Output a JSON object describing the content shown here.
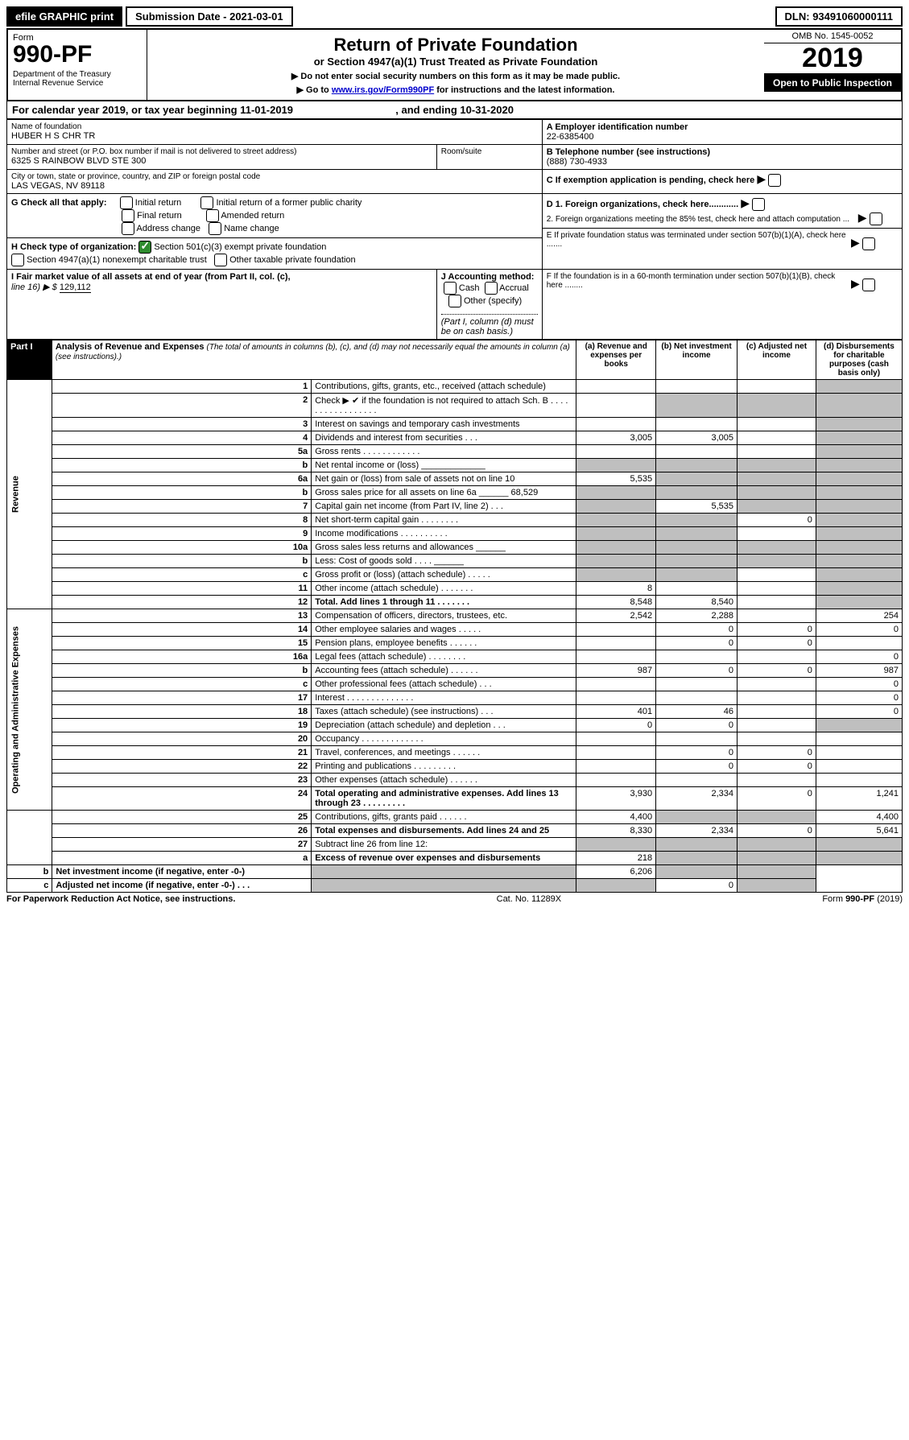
{
  "topbar": {
    "efile": "efile GRAPHIC print",
    "submission": "Submission Date - 2021-03-01",
    "dln": "DLN: 93491060000111"
  },
  "header": {
    "form_label": "Form",
    "form_num": "990-PF",
    "dept": "Department of the Treasury",
    "irs": "Internal Revenue Service",
    "title": "Return of Private Foundation",
    "subtitle": "or Section 4947(a)(1) Trust Treated as Private Foundation",
    "instr1": "▶ Do not enter social security numbers on this form as it may be made public.",
    "instr2_pre": "▶ Go to ",
    "instr2_link": "www.irs.gov/Form990PF",
    "instr2_post": " for instructions and the latest information.",
    "omb": "OMB No. 1545-0052",
    "year": "2019",
    "open": "Open to Public Inspection"
  },
  "calyear": {
    "text_a": "For calendar year 2019, or tax year beginning 11-01-2019",
    "text_b": ", and ending 10-31-2020"
  },
  "id": {
    "name_label": "Name of foundation",
    "name": "HUBER H S CHR TR",
    "addr_label": "Number and street (or P.O. box number if mail is not delivered to street address)",
    "addr": "6325 S RAINBOW BLVD STE 300",
    "room_label": "Room/suite",
    "city_label": "City or town, state or province, country, and ZIP or foreign postal code",
    "city": "LAS VEGAS, NV  89118",
    "ein_label": "A Employer identification number",
    "ein": "22-6385400",
    "phone_label": "B Telephone number (see instructions)",
    "phone": "(888) 730-4933",
    "c_label": "C If exemption application is pending, check here",
    "d1": "D 1. Foreign organizations, check here............",
    "d2": "2. Foreign organizations meeting the 85% test, check here and attach computation ...",
    "e": "E  If private foundation status was terminated under section 507(b)(1)(A), check here .......",
    "f": "F  If the foundation is in a 60-month termination under section 507(b)(1)(B), check here ........"
  },
  "g": {
    "label": "G Check all that apply:",
    "opts": [
      "Initial return",
      "Final return",
      "Address change",
      "Initial return of a former public charity",
      "Amended return",
      "Name change"
    ]
  },
  "h": {
    "label": "H Check type of organization:",
    "opt1": "Section 501(c)(3) exempt private foundation",
    "opt2": "Section 4947(a)(1) nonexempt charitable trust",
    "opt3": "Other taxable private foundation"
  },
  "i": {
    "label": "I Fair market value of all assets at end of year (from Part II, col. (c),",
    "line": "line 16) ▶ $",
    "val": "129,112"
  },
  "j": {
    "label": "J Accounting method:",
    "cash": "Cash",
    "accrual": "Accrual",
    "other": "Other (specify)",
    "note": "(Part I, column (d) must be on cash basis.)"
  },
  "part1": {
    "hdr": "Part I",
    "title": "Analysis of Revenue and Expenses",
    "note": "(The total of amounts in columns (b), (c), and (d) may not necessarily equal the amounts in column (a) (see instructions).)",
    "col_a": "(a)  Revenue and expenses per books",
    "col_b": "(b)  Net investment income",
    "col_c": "(c)  Adjusted net income",
    "col_d": "(d)  Disbursements for charitable purposes (cash basis only)",
    "rev_label": "Revenue",
    "exp_label": "Operating and Administrative Expenses"
  },
  "rows": [
    {
      "n": "1",
      "d": "Contributions, gifts, grants, etc., received (attach schedule)",
      "a": "",
      "b": "",
      "c": "",
      "dd": "",
      "gc": "",
      "gd": "1"
    },
    {
      "n": "2",
      "d": "Check ▶ ✔ if the foundation is not required to attach Sch. B  .  .  .  .  .  .  .  .  .  .  .  .  .  .  .  .  .",
      "a": "",
      "b": "",
      "c": "",
      "dd": "",
      "gb": "1",
      "gc": "1",
      "gd": "1"
    },
    {
      "n": "3",
      "d": "Interest on savings and temporary cash investments",
      "a": "",
      "b": "",
      "c": "",
      "dd": "",
      "gd": "1"
    },
    {
      "n": "4",
      "d": "Dividends and interest from securities    .   .   .",
      "a": "3,005",
      "b": "3,005",
      "c": "",
      "dd": "",
      "gd": "1"
    },
    {
      "n": "5a",
      "d": "Gross rents    .  .  .  .  .  .  .  .  .  .  .  .",
      "a": "",
      "b": "",
      "c": "",
      "dd": "",
      "gd": "1"
    },
    {
      "n": "b",
      "d": "Net rental income or (loss)  _____________",
      "a": "",
      "b": "",
      "c": "",
      "dd": "",
      "ga": "1",
      "gb": "1",
      "gc": "1",
      "gd": "1"
    },
    {
      "n": "6a",
      "d": "Net gain or (loss) from sale of assets not on line 10",
      "a": "5,535",
      "b": "",
      "c": "",
      "dd": "",
      "gb": "1",
      "gc": "1",
      "gd": "1"
    },
    {
      "n": "b",
      "d": "Gross sales price for all assets on line 6a ______ 68,529",
      "a": "",
      "b": "",
      "c": "",
      "dd": "",
      "ga": "1",
      "gb": "1",
      "gc": "1",
      "gd": "1"
    },
    {
      "n": "7",
      "d": "Capital gain net income (from Part IV, line 2)   .   .   .",
      "a": "",
      "b": "5,535",
      "c": "",
      "dd": "",
      "ga": "1",
      "gc": "1",
      "gd": "1"
    },
    {
      "n": "8",
      "d": "Net short-term capital gain   .  .  .  .  .  .  .  .",
      "a": "",
      "b": "",
      "c": "0",
      "dd": "",
      "ga": "1",
      "gb": "1",
      "gd": "1"
    },
    {
      "n": "9",
      "d": "Income modifications  .  .  .  .  .  .  .  .  .  .",
      "a": "",
      "b": "",
      "c": "",
      "dd": "",
      "ga": "1",
      "gb": "1",
      "gd": "1"
    },
    {
      "n": "10a",
      "d": "Gross sales less returns and allowances  ______",
      "a": "",
      "b": "",
      "c": "",
      "dd": "",
      "ga": "1",
      "gb": "1",
      "gc": "1",
      "gd": "1"
    },
    {
      "n": "b",
      "d": "Less: Cost of goods sold    .   .   .   .  ______",
      "a": "",
      "b": "",
      "c": "",
      "dd": "",
      "ga": "1",
      "gb": "1",
      "gc": "1",
      "gd": "1"
    },
    {
      "n": "c",
      "d": "Gross profit or (loss) (attach schedule)   .  .  .  .  .",
      "a": "",
      "b": "",
      "c": "",
      "dd": "",
      "ga": "1",
      "gb": "1",
      "gd": "1"
    },
    {
      "n": "11",
      "d": "Other income (attach schedule)   .  .  .  .  .  .  .",
      "a": "8",
      "b": "",
      "c": "",
      "dd": "",
      "gd": "1"
    },
    {
      "n": "12",
      "d": "Total. Add lines 1 through 11   .  .  .  .  .  .  .",
      "a": "8,548",
      "b": "8,540",
      "c": "",
      "dd": "",
      "gd": "1",
      "bold": "1"
    },
    {
      "n": "13",
      "d": "Compensation of officers, directors, trustees, etc.",
      "a": "2,542",
      "b": "2,288",
      "c": "",
      "dd": "254"
    },
    {
      "n": "14",
      "d": "Other employee salaries and wages    .  .  .  .  .",
      "a": "",
      "b": "0",
      "c": "0",
      "dd": "0"
    },
    {
      "n": "15",
      "d": "Pension plans, employee benefits   .  .  .  .  .  .",
      "a": "",
      "b": "0",
      "c": "0",
      "dd": ""
    },
    {
      "n": "16a",
      "d": "Legal fees (attach schedule)  .  .  .  .  .  .  .  .",
      "a": "",
      "b": "",
      "c": "",
      "dd": "0"
    },
    {
      "n": "b",
      "d": "Accounting fees (attach schedule)  .  .  .  .  .  .",
      "a": "987",
      "b": "0",
      "c": "0",
      "dd": "987"
    },
    {
      "n": "c",
      "d": "Other professional fees (attach schedule)    .  .  .",
      "a": "",
      "b": "",
      "c": "",
      "dd": "0"
    },
    {
      "n": "17",
      "d": "Interest   .  .  .  .  .  .  .  .  .  .  .  .  .  .",
      "a": "",
      "b": "",
      "c": "",
      "dd": "0"
    },
    {
      "n": "18",
      "d": "Taxes (attach schedule) (see instructions)    .   .   .",
      "a": "401",
      "b": "46",
      "c": "",
      "dd": "0"
    },
    {
      "n": "19",
      "d": "Depreciation (attach schedule) and depletion    .   .   .",
      "a": "0",
      "b": "0",
      "c": "",
      "dd": "",
      "gd": "1"
    },
    {
      "n": "20",
      "d": "Occupancy  .  .  .  .  .  .  .  .  .  .  .  .  .",
      "a": "",
      "b": "",
      "c": "",
      "dd": ""
    },
    {
      "n": "21",
      "d": "Travel, conferences, and meetings  .  .  .  .  .  .",
      "a": "",
      "b": "0",
      "c": "0",
      "dd": ""
    },
    {
      "n": "22",
      "d": "Printing and publications  .  .  .  .  .  .  .  .  .",
      "a": "",
      "b": "0",
      "c": "0",
      "dd": ""
    },
    {
      "n": "23",
      "d": "Other expenses (attach schedule)   .  .  .  .  .  .",
      "a": "",
      "b": "",
      "c": "",
      "dd": ""
    },
    {
      "n": "24",
      "d": "Total operating and administrative expenses. Add lines 13 through 23   .  .  .  .  .  .  .  .  .",
      "a": "3,930",
      "b": "2,334",
      "c": "0",
      "dd": "1,241",
      "bold": "1"
    },
    {
      "n": "25",
      "d": "Contributions, gifts, grants paid    .  .  .  .  .  .",
      "a": "4,400",
      "b": "",
      "c": "",
      "dd": "4,400",
      "gb": "1",
      "gc": "1"
    },
    {
      "n": "26",
      "d": "Total expenses and disbursements. Add lines 24 and 25",
      "a": "8,330",
      "b": "2,334",
      "c": "0",
      "dd": "5,641",
      "bold": "1"
    },
    {
      "n": "27",
      "d": "Subtract line 26 from line 12:",
      "a": "",
      "b": "",
      "c": "",
      "dd": "",
      "ga": "1",
      "gb": "1",
      "gc": "1",
      "gd": "1"
    },
    {
      "n": "a",
      "d": "Excess of revenue over expenses and disbursements",
      "a": "218",
      "b": "",
      "c": "",
      "dd": "",
      "gb": "1",
      "gc": "1",
      "gd": "1",
      "bold": "1"
    },
    {
      "n": "b",
      "d": "Net investment income (if negative, enter -0-)",
      "a": "",
      "b": "6,206",
      "c": "",
      "dd": "",
      "ga": "1",
      "gc": "1",
      "gd": "1",
      "bold": "1"
    },
    {
      "n": "c",
      "d": "Adjusted net income (if negative, enter -0-)   .   .   .",
      "a": "",
      "b": "",
      "c": "0",
      "dd": "",
      "ga": "1",
      "gb": "1",
      "gd": "1",
      "bold": "1"
    }
  ],
  "footer": {
    "left": "For Paperwork Reduction Act Notice, see instructions.",
    "mid": "Cat. No. 11289X",
    "right": "Form 990-PF (2019)"
  }
}
